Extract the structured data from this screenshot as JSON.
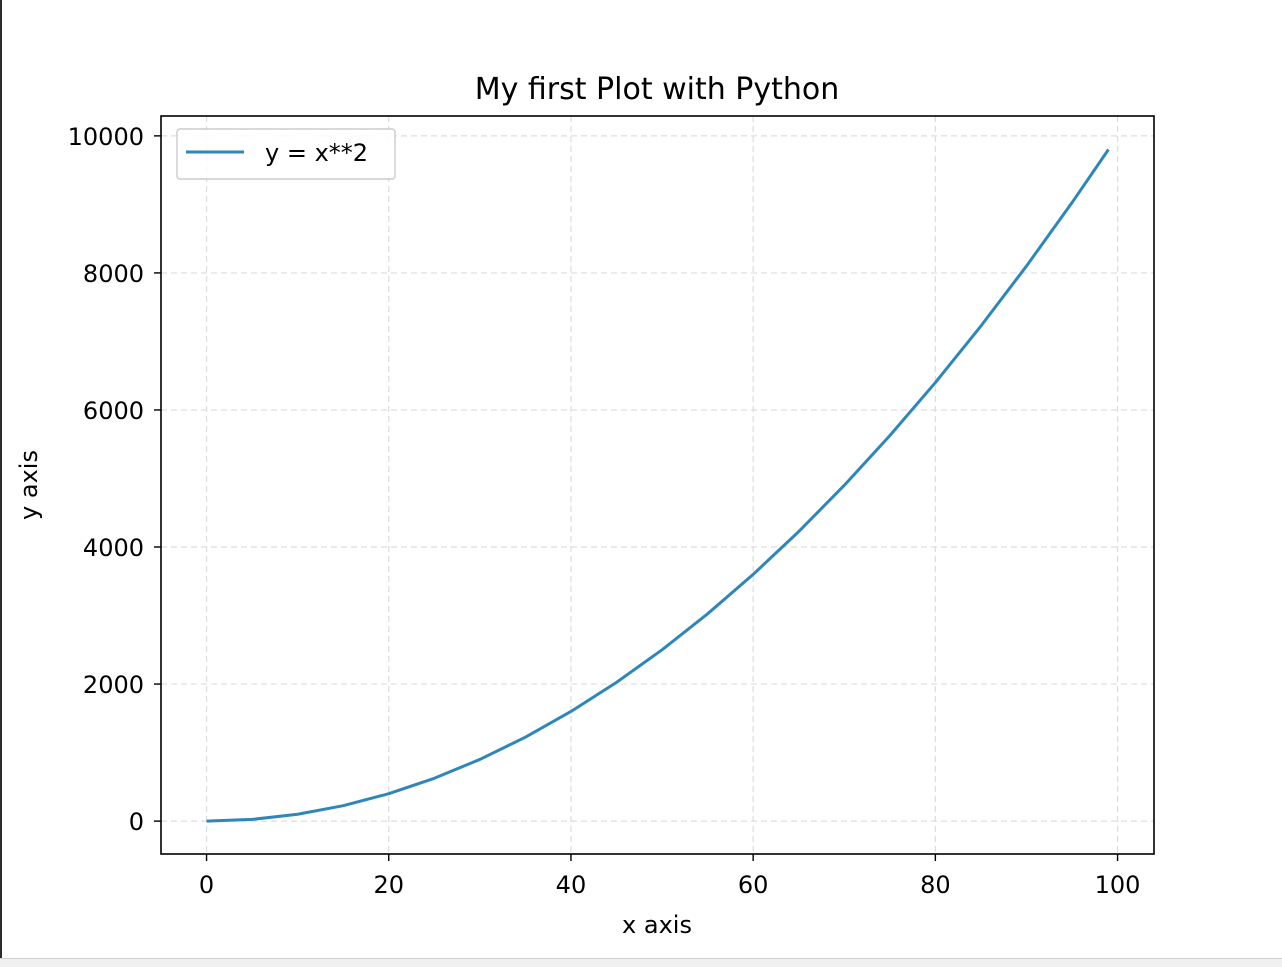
{
  "chart_data": {
    "type": "line",
    "title": "My first Plot with Python",
    "xlabel": "x axis",
    "ylabel": "y axis",
    "xlim": [
      -5,
      104
    ],
    "ylim": [
      -480,
      10290
    ],
    "xticks": [
      0,
      20,
      40,
      60,
      80,
      100
    ],
    "yticks": [
      0,
      2000,
      4000,
      6000,
      8000,
      10000
    ],
    "xtick_labels": [
      "0",
      "20",
      "40",
      "60",
      "80",
      "100"
    ],
    "ytick_labels": [
      "0",
      "2000",
      "4000",
      "6000",
      "8000",
      "10000"
    ],
    "grid": true,
    "grid_style": "dashed",
    "legend_position": "upper-left",
    "series": [
      {
        "name": "y = x**2",
        "color": "#2e86b9",
        "x": [
          0,
          5,
          10,
          15,
          20,
          25,
          30,
          35,
          40,
          45,
          50,
          55,
          60,
          65,
          70,
          75,
          80,
          85,
          90,
          95,
          99
        ],
        "values": [
          0,
          25,
          100,
          225,
          400,
          625,
          900,
          1225,
          1600,
          2025,
          2500,
          3025,
          3600,
          4225,
          4900,
          5625,
          6400,
          7225,
          8100,
          9025,
          9801
        ]
      }
    ]
  }
}
